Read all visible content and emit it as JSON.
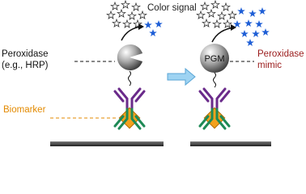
{
  "left": {
    "signal_label": "Color signal",
    "enzyme_label": [
      "Peroxidase",
      "(e.g., HRP)"
    ],
    "target_label": "Biomarker"
  },
  "right": {
    "particle_label": "PGM",
    "enzyme_label": [
      "Peroxidase",
      "mimic"
    ]
  }
}
